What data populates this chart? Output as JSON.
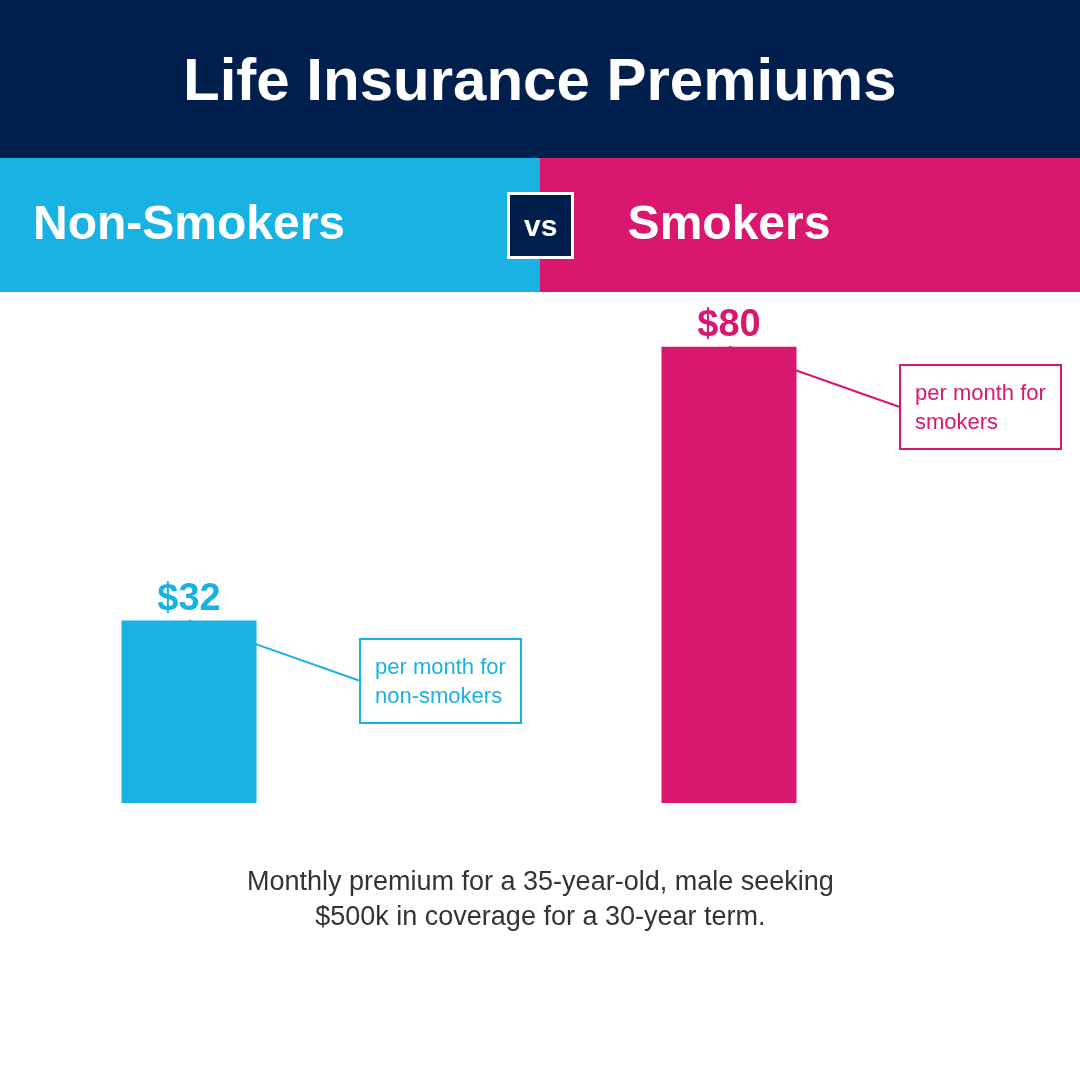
{
  "chart_data": {
    "type": "bar",
    "title": "Life Insurance Premiums",
    "categories": [
      "Non-Smokers",
      "Smokers"
    ],
    "values": [
      32,
      80
    ],
    "colors": [
      "#18b2e3",
      "#d9176f"
    ],
    "value_labels": [
      "$32",
      "$80"
    ],
    "annotations": [
      "vs",
      {
        "text": "per month for non-smokers",
        "x": "Non-Smokers",
        "y": 32
      },
      {
        "text": "per month for smokers",
        "x": "Smokers",
        "y": 80
      },
      "Monthly premium for a 35-year-old, male seeking $500k in coverage for a 30-year term."
    ],
    "legend": false
  }
}
